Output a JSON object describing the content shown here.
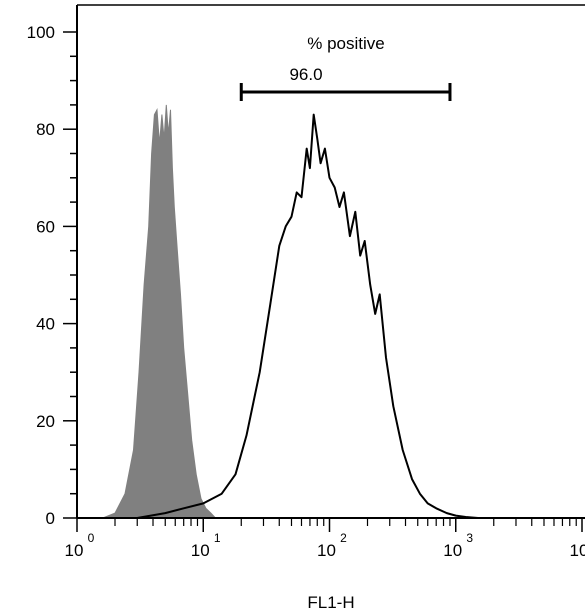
{
  "chart_data": {
    "type": "area",
    "xlabel": "FL1-H",
    "ylabel": "",
    "x_scale": "log",
    "xlim": [
      1,
      10000
    ],
    "ylim": [
      0,
      105
    ],
    "y_ticks": [
      "0",
      "20",
      "40",
      "60",
      "80",
      "100"
    ],
    "x_tick_bases": [
      "10",
      "10",
      "10",
      "10",
      "10"
    ],
    "x_tick_exponents": [
      "0",
      "1",
      "2",
      "3",
      "4"
    ],
    "grid": false,
    "annotation": {
      "title": "% positive",
      "value": "96.0",
      "x_range": [
        20,
        900
      ]
    },
    "series": [
      {
        "style": "filled",
        "color": "#808080",
        "x": [
          1.6,
          2.0,
          2.4,
          2.8,
          3.1,
          3.4,
          3.7,
          3.9,
          4.1,
          4.3,
          4.5,
          4.7,
          4.9,
          5.1,
          5.3,
          5.5,
          5.7,
          5.9,
          6.2,
          6.6,
          7.0,
          7.5,
          8.1,
          8.8,
          9.6,
          10.5,
          11.5,
          12.5
        ],
        "values": [
          0,
          1,
          5,
          14,
          30,
          48,
          60,
          75,
          83,
          84,
          77,
          83,
          78,
          85,
          79,
          84,
          72,
          64,
          56,
          46,
          35,
          26,
          16,
          9,
          4,
          2,
          1,
          0
        ]
      },
      {
        "style": "outline",
        "color": "#000000",
        "x": [
          3.0,
          5.0,
          7.0,
          10.0,
          14.0,
          18.0,
          22.0,
          28.0,
          34.0,
          40.0,
          45.0,
          50.0,
          55.0,
          60.0,
          66.0,
          70.0,
          75.0,
          80.0,
          85.0,
          92.0,
          100.0,
          110.0,
          120.0,
          130.0,
          145.0,
          160.0,
          175.0,
          190.0,
          210.0,
          230.0,
          250.0,
          280.0,
          320.0,
          380.0,
          450.0,
          520.0,
          600.0,
          700.0,
          850.0,
          1000.0,
          1200.0,
          1500.0
        ],
        "values": [
          0,
          1,
          2,
          3,
          5,
          9,
          17,
          30,
          44,
          56,
          60,
          62,
          67,
          66,
          76,
          72,
          83,
          78,
          73,
          76,
          70,
          68,
          64,
          67,
          58,
          63,
          54,
          57,
          48,
          42,
          46,
          33,
          23,
          14,
          8,
          5,
          3,
          2,
          1,
          0.5,
          0.2,
          0
        ]
      }
    ]
  }
}
